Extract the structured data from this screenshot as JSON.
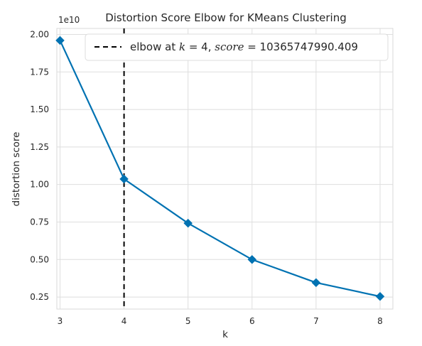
{
  "chart_data": {
    "type": "line",
    "title": "Distortion Score Elbow for KMeans Clustering",
    "xlabel": "k",
    "ylabel": "distortion score",
    "y_offset_label": "1e10",
    "x": [
      3,
      4,
      5,
      6,
      7,
      8
    ],
    "series": [
      {
        "values": [
          1.96,
          1.0366,
          0.742,
          0.5,
          0.346,
          0.254
        ],
        "color": "#0072b2",
        "marker": "diamond"
      }
    ],
    "x_ticks": [
      3,
      4,
      5,
      6,
      7,
      8
    ],
    "x_tick_labels": [
      "3",
      "4",
      "5",
      "6",
      "7",
      "8"
    ],
    "y_ticks": [
      0.25,
      0.5,
      0.75,
      1.0,
      1.25,
      1.5,
      1.75,
      2.0
    ],
    "y_tick_labels": [
      "0.25",
      "0.50",
      "0.75",
      "1.00",
      "1.25",
      "1.50",
      "1.75",
      "2.00"
    ],
    "xlim": [
      2.95,
      8.2
    ],
    "ylim": [
      0.17,
      2.04
    ],
    "grid": true,
    "elbow": {
      "x": 4,
      "line_style": "dashed",
      "color": "#000000"
    },
    "legend": {
      "placement": "top-right",
      "label_prefix": "elbow at ",
      "k_symbol": "k",
      "k_part": " = 4, ",
      "score_symbol": "score",
      "score_part": " = 10365747990.409"
    }
  }
}
